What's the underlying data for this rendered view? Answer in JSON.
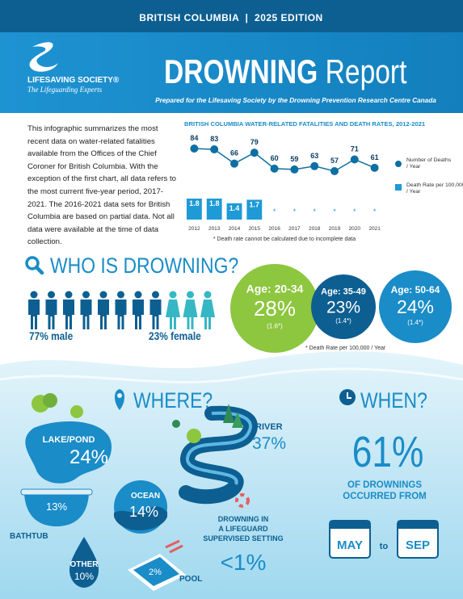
{
  "header": {
    "edition": "BRITISH COLUMBIA  |  2025 EDITION",
    "logo_name": "LIFESAVING SOCIETY®",
    "logo_tagline": "The Lifeguarding Experts",
    "title_bold": "DROWNING",
    "title_light": " Report",
    "subtitle": "Prepared for the Lifesaving Society by the Drowning Prevention Research Centre Canada"
  },
  "intro": "This infographic summarizes the most recent data on water-related fatalities available from the Offices of the Chief Coroner for British Columbia. With the exception of the first chart, all data refers to the most current five-year period, 2017-2021. The 2016-2021 data sets for British Columbia are based on partial data. Not all data were available at the time of data collection.",
  "chart_data": {
    "type": "bar",
    "title": "BRITISH COLUMBIA WATER-RELATED FATALITIES AND DEATH RATES, 2012-2021",
    "categories": [
      "2012",
      "2013",
      "2014",
      "2015",
      "2016",
      "2017",
      "2018",
      "2019",
      "2020",
      "2021"
    ],
    "series": [
      {
        "name": "Number of Deaths / Year",
        "color": "#0d6fa3",
        "type": "line",
        "values": [
          84,
          83,
          66,
          79,
          60,
          59,
          63,
          57,
          71,
          61
        ]
      },
      {
        "name": "Death Rate per 100,000 / Year",
        "color": "#1e9ad6",
        "type": "bar",
        "values": [
          1.8,
          1.8,
          1.4,
          1.7,
          null,
          null,
          null,
          null,
          null,
          null
        ]
      }
    ],
    "missing_label": "*",
    "footnote": "* Death rate cannot be calculated due to incomplete data"
  },
  "who": {
    "heading": "WHO IS DROWNING?",
    "male": "77% male",
    "female": "23% female",
    "ages": [
      {
        "label": "Age: 20-34",
        "percent": "28%",
        "rate": "(1.6*)"
      },
      {
        "label": "Age: 35-49",
        "percent": "23%",
        "rate": "(1.4*)"
      },
      {
        "label": "Age: 50-64",
        "percent": "24%",
        "rate": "(1.4*)"
      }
    ],
    "footnote": "* Death Rate per 100,000 / Year"
  },
  "where": {
    "heading": "WHERE?",
    "lake": {
      "label": "LAKE/POND",
      "percent": "24%"
    },
    "river": {
      "label": "RIVER",
      "percent": "37%"
    },
    "bathtub": {
      "label": "BATHTUB",
      "percent": "13%"
    },
    "ocean": {
      "label": "OCEAN",
      "percent": "14%"
    },
    "other": {
      "label": "OTHER",
      "percent": "10%"
    },
    "pool": {
      "label": "POOL",
      "percent": "2%"
    },
    "lifeguard": {
      "lines": [
        "DROWNING IN",
        "A LIFEGUARD",
        "SUPERVISED SETTING"
      ],
      "percent": "<1%"
    }
  },
  "when": {
    "heading": "WHEN?",
    "percent": "61%",
    "lines": [
      "OF DROWNINGS",
      "OCCURRED FROM"
    ],
    "from": "MAY",
    "to": "to",
    "until": "SEP"
  }
}
